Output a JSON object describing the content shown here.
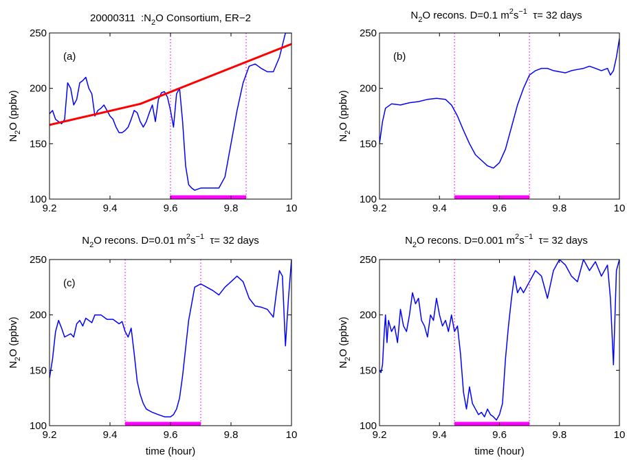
{
  "colors": {
    "trace": "#0000ff",
    "background_line": "#ff0000",
    "marker": "#ff00ff",
    "axes": "#000000"
  },
  "chart_data": [
    {
      "type": "line",
      "panel_label": "(a)",
      "title": "20000311  :N2O Consortium, ER−2",
      "xlabel": "",
      "ylabel": "N2O (ppbv)",
      "xlim": [
        9.2,
        10
      ],
      "ylim": [
        100,
        250
      ],
      "xticks": [
        9.2,
        9.4,
        9.6,
        9.8,
        10
      ],
      "yticks": [
        100,
        150,
        200,
        250
      ],
      "grid": false,
      "series": [
        {
          "role": "measured",
          "x": [
            9.2,
            9.21,
            9.22,
            9.23,
            9.24,
            9.25,
            9.26,
            9.27,
            9.28,
            9.29,
            9.3,
            9.31,
            9.32,
            9.33,
            9.34,
            9.35,
            9.36,
            9.37,
            9.38,
            9.39,
            9.4,
            9.41,
            9.42,
            9.43,
            9.44,
            9.45,
            9.46,
            9.47,
            9.48,
            9.49,
            9.5,
            9.51,
            9.52,
            9.53,
            9.54,
            9.55,
            9.56,
            9.57,
            9.58,
            9.59,
            9.6,
            9.61,
            9.62,
            9.63,
            9.64,
            9.65,
            9.66,
            9.67,
            9.68,
            9.7,
            9.72,
            9.74,
            9.76,
            9.78,
            9.8,
            9.82,
            9.84,
            9.86,
            9.88,
            9.9,
            9.92,
            9.94,
            9.96,
            9.98,
            10
          ],
          "y": [
            177,
            180,
            172,
            170,
            168,
            172,
            205,
            200,
            185,
            190,
            205,
            207,
            210,
            200,
            195,
            175,
            180,
            182,
            185,
            180,
            175,
            172,
            165,
            160,
            160,
            162,
            165,
            172,
            180,
            178,
            170,
            165,
            170,
            178,
            185,
            170,
            190,
            196,
            197,
            192,
            180,
            165,
            195,
            200,
            170,
            130,
            113,
            110,
            108,
            110,
            110,
            110,
            110,
            120,
            150,
            180,
            205,
            220,
            222,
            218,
            215,
            215,
            228,
            250,
            250
          ]
        },
        {
          "role": "reference",
          "x": [
            9.2,
            9.5,
            10
          ],
          "y": [
            167,
            186,
            240
          ]
        }
      ],
      "markers": {
        "vlines": [
          9.6,
          9.85
        ],
        "span": [
          9.6,
          9.85
        ]
      }
    },
    {
      "type": "line",
      "panel_label": "(b)",
      "title": "N2O recons. D=0.1 m2s−1  τ= 32 days",
      "xlabel": "",
      "ylabel": "N2O (ppbv)",
      "xlim": [
        9.2,
        10
      ],
      "ylim": [
        100,
        250
      ],
      "xticks": [
        9.2,
        9.4,
        9.6,
        9.8,
        10
      ],
      "yticks": [
        100,
        150,
        200,
        250
      ],
      "grid": false,
      "series": [
        {
          "role": "reconstruction",
          "x": [
            9.2,
            9.21,
            9.22,
            9.24,
            9.27,
            9.3,
            9.33,
            9.36,
            9.39,
            9.42,
            9.44,
            9.46,
            9.48,
            9.5,
            9.52,
            9.54,
            9.56,
            9.58,
            9.6,
            9.62,
            9.64,
            9.66,
            9.68,
            9.7,
            9.72,
            9.74,
            9.76,
            9.78,
            9.8,
            9.82,
            9.84,
            9.86,
            9.88,
            9.9,
            9.92,
            9.94,
            9.96,
            9.97,
            9.98,
            9.99,
            10
          ],
          "y": [
            150,
            170,
            182,
            186,
            185,
            187,
            188,
            190,
            191,
            190,
            185,
            175,
            162,
            150,
            140,
            135,
            130,
            128,
            133,
            145,
            165,
            185,
            200,
            212,
            216,
            218,
            218,
            216,
            215,
            214,
            216,
            217,
            218,
            220,
            218,
            216,
            218,
            212,
            216,
            228,
            245
          ]
        }
      ],
      "markers": {
        "vlines": [
          9.45,
          9.7
        ],
        "span": [
          9.45,
          9.7
        ]
      }
    },
    {
      "type": "line",
      "panel_label": "(c)",
      "title": "N2O recons. D=0.01 m2s−1  τ= 32 days",
      "xlabel": "time  (hour)",
      "ylabel": "N2O (ppbv)",
      "xlim": [
        9.2,
        10
      ],
      "ylim": [
        100,
        250
      ],
      "xticks": [
        9.2,
        9.4,
        9.6,
        9.8,
        10
      ],
      "yticks": [
        100,
        150,
        200,
        250
      ],
      "grid": false,
      "series": [
        {
          "role": "reconstruction",
          "x": [
            9.2,
            9.21,
            9.22,
            9.23,
            9.24,
            9.25,
            9.27,
            9.28,
            9.29,
            9.3,
            9.31,
            9.32,
            9.33,
            9.34,
            9.35,
            9.37,
            9.39,
            9.41,
            9.43,
            9.44,
            9.45,
            9.46,
            9.47,
            9.48,
            9.49,
            9.5,
            9.51,
            9.52,
            9.54,
            9.56,
            9.58,
            9.6,
            9.61,
            9.62,
            9.63,
            9.64,
            9.65,
            9.66,
            9.67,
            9.68,
            9.7,
            9.72,
            9.74,
            9.76,
            9.78,
            9.8,
            9.82,
            9.84,
            9.86,
            9.88,
            9.9,
            9.92,
            9.94,
            9.95,
            9.96,
            9.97,
            9.98,
            9.99,
            10
          ],
          "y": [
            143,
            160,
            185,
            195,
            188,
            180,
            183,
            180,
            192,
            195,
            190,
            197,
            195,
            193,
            200,
            200,
            196,
            196,
            192,
            194,
            185,
            180,
            188,
            165,
            140,
            128,
            120,
            115,
            112,
            110,
            108,
            108,
            110,
            115,
            125,
            145,
            170,
            195,
            210,
            225,
            228,
            225,
            222,
            218,
            225,
            230,
            235,
            230,
            215,
            208,
            207,
            205,
            198,
            220,
            240,
            235,
            172,
            215,
            250
          ]
        }
      ],
      "markers": {
        "vlines": [
          9.45,
          9.7
        ],
        "span": [
          9.45,
          9.7
        ]
      }
    },
    {
      "type": "line",
      "panel_label": "",
      "title": "N2O recons. D=0.001 m2s−1  τ= 32 days",
      "xlabel": "time  (hour)",
      "ylabel": "N2O (ppbv)",
      "xlim": [
        9.2,
        10
      ],
      "ylim": [
        100,
        250
      ],
      "xticks": [
        9.2,
        9.4,
        9.6,
        9.8,
        10
      ],
      "yticks": [
        100,
        150,
        200,
        250
      ],
      "grid": false,
      "series": [
        {
          "role": "reconstruction",
          "x": [
            9.2,
            9.205,
            9.21,
            9.215,
            9.22,
            9.225,
            9.23,
            9.24,
            9.25,
            9.26,
            9.27,
            9.28,
            9.29,
            9.3,
            9.31,
            9.32,
            9.33,
            9.34,
            9.35,
            9.36,
            9.37,
            9.38,
            9.39,
            9.4,
            9.41,
            9.42,
            9.43,
            9.44,
            9.45,
            9.46,
            9.47,
            9.48,
            9.49,
            9.5,
            9.51,
            9.52,
            9.53,
            9.54,
            9.55,
            9.56,
            9.57,
            9.58,
            9.59,
            9.6,
            9.61,
            9.62,
            9.63,
            9.64,
            9.65,
            9.66,
            9.67,
            9.68,
            9.7,
            9.72,
            9.74,
            9.76,
            9.78,
            9.8,
            9.82,
            9.84,
            9.86,
            9.88,
            9.9,
            9.92,
            9.94,
            9.96,
            9.97,
            9.98,
            9.99,
            10
          ],
          "y": [
            150,
            148,
            155,
            180,
            200,
            175,
            195,
            185,
            190,
            175,
            205,
            190,
            185,
            200,
            220,
            210,
            215,
            195,
            190,
            180,
            200,
            195,
            215,
            200,
            190,
            195,
            185,
            200,
            185,
            190,
            165,
            130,
            115,
            135,
            120,
            115,
            110,
            112,
            108,
            115,
            110,
            108,
            105,
            110,
            120,
            160,
            190,
            215,
            235,
            220,
            225,
            220,
            230,
            240,
            235,
            215,
            240,
            250,
            245,
            235,
            230,
            250,
            240,
            248,
            235,
            245,
            215,
            155,
            240,
            250
          ]
        }
      ],
      "markers": {
        "vlines": [
          9.45,
          9.7
        ],
        "span": [
          9.45,
          9.7
        ]
      }
    }
  ]
}
